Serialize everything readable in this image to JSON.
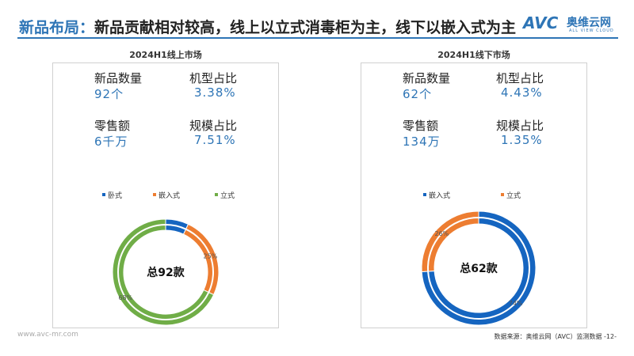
{
  "header": {
    "title_highlight": "新品布局：",
    "title_rest": "新品贡献相对较高，线上以立式消毒柜为主，线下以嵌入式为主",
    "logo_mark": "AVC",
    "logo_cn": "奥维云网",
    "logo_en": "ALL VIEW CLOUD"
  },
  "panels": [
    {
      "title": "2024H1线上市场",
      "stats": [
        {
          "label": "新品数量",
          "value": "92个"
        },
        {
          "label": "机型占比",
          "value": "3.38%"
        },
        {
          "label": "零售额",
          "value": "6千万"
        },
        {
          "label": "规模占比",
          "value": "7.51%"
        }
      ]
    },
    {
      "title": "2024H1线下市场",
      "stats": [
        {
          "label": "新品数量",
          "value": "62个"
        },
        {
          "label": "机型占比",
          "value": "4.43%"
        },
        {
          "label": "零售额",
          "value": "134万"
        },
        {
          "label": "规模占比",
          "value": "1.35%"
        }
      ]
    }
  ],
  "chart_data": [
    {
      "type": "pie",
      "donut": true,
      "center_label": "总92款",
      "categories": [
        "卧式",
        "嵌入式",
        "立式"
      ],
      "values": [
        7,
        25,
        68
      ],
      "unit": "%",
      "data_labels": [
        "",
        "25%",
        "68%"
      ],
      "colors": [
        "#1565c0",
        "#ed7d31",
        "#70ad47"
      ],
      "legend": "top"
    },
    {
      "type": "pie",
      "donut": true,
      "center_label": "总62款",
      "categories": [
        "嵌入式",
        "立式"
      ],
      "values": [
        74,
        26
      ],
      "unit": "%",
      "data_labels": [
        "74%",
        "26%"
      ],
      "colors": [
        "#1565c0",
        "#ed7d31"
      ],
      "legend": "top"
    }
  ],
  "footer": {
    "website": "www.avc-mr.com",
    "source": "数据来源：奥维云网（AVC）监测数据  -12-"
  }
}
